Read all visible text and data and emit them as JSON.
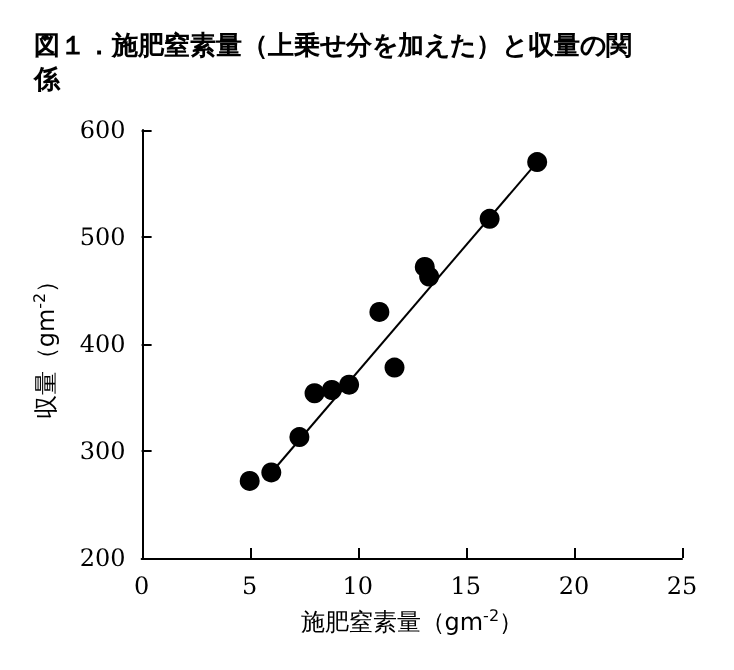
{
  "chart_data": {
    "type": "scatter",
    "title": "図１．施肥窒素量（上乗せ分を加えた）と収量の関係",
    "xlabel": "施肥窒素量（gm$^{-2}$）",
    "ylabel": "収量（gm$^{-2}$）",
    "xlim": [
      0,
      25
    ],
    "xticks": [
      0,
      5,
      10,
      15,
      20,
      25
    ],
    "ylim": [
      200,
      600
    ],
    "yticks": [
      200,
      300,
      400,
      500,
      600
    ],
    "grid": false,
    "marker": "circle",
    "series": [
      {
        "color": "#000000",
        "x": [
          5.0,
          6.0,
          7.3,
          8.0,
          8.8,
          9.6,
          11.0,
          11.7,
          13.1,
          13.3,
          16.1,
          18.3
        ],
        "values": [
          272,
          280,
          313,
          354,
          357,
          362,
          430,
          378,
          472,
          463,
          517,
          570
        ]
      },
      {
        "type": "line",
        "color": "#000000",
        "marker": "none",
        "line_style": "solid",
        "x": [
          5.8,
          18.3
        ],
        "values": [
          275,
          570
        ]
      }
    ]
  }
}
